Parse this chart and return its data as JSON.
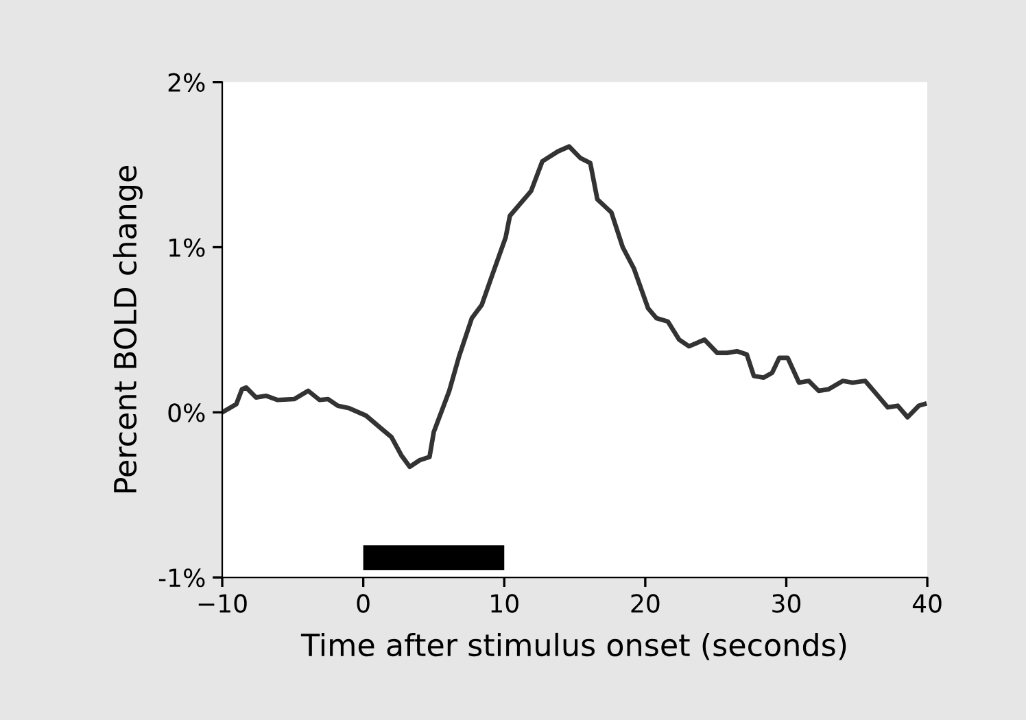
{
  "chart_data": {
    "type": "line",
    "xlabel": "Time after stimulus onset (seconds)",
    "ylabel": "Percent BOLD change",
    "xlim": [
      -10,
      40
    ],
    "ylim": [
      -1,
      2
    ],
    "xticks": [
      {
        "value": -10,
        "label": "−10"
      },
      0,
      10,
      20,
      30,
      40
    ],
    "yticks": [
      {
        "value": -1,
        "label": "-1%"
      },
      {
        "value": 0,
        "label": "0%"
      },
      {
        "value": 1,
        "label": "1%"
      },
      {
        "value": 2,
        "label": "2%"
      }
    ],
    "grid": false,
    "legend": false,
    "marker": "none",
    "line_style": "solid",
    "bands": [
      {
        "axis": "x",
        "from": 0,
        "to": 10,
        "color": "#000000"
      }
    ],
    "series": [
      {
        "color": "#333333",
        "x": [
          -10,
          -9,
          -8.6,
          -8.3,
          -7.6,
          -6.9,
          -6.1,
          -4.9,
          -3.9,
          -3.1,
          -2.5,
          -1.8,
          -1,
          0.2,
          1.3,
          2,
          2.7,
          3.3,
          4,
          4.7,
          5,
          6.1,
          6.8,
          7.7,
          8.4,
          9.1,
          10.1,
          10.4,
          11.9,
          12.7,
          13.8,
          14.6,
          15.4,
          16.1,
          16.6,
          17.6,
          18.4,
          19.2,
          20.2,
          20.8,
          21.6,
          22.4,
          23.1,
          24.2,
          25.1,
          25.8,
          26.5,
          27.2,
          27.7,
          28.4,
          29,
          29.5,
          30.1,
          30.9,
          31.6,
          32.3,
          33,
          34,
          34.7,
          35.6,
          36.3,
          37.2,
          37.9,
          38.6,
          39.4,
          39.8
        ],
        "values": [
          0,
          0.05,
          0.14,
          0.15,
          0.09,
          0.1,
          0.075,
          0.08,
          0.13,
          0.075,
          0.08,
          0.04,
          0.025,
          -0.02,
          -0.1,
          -0.15,
          -0.26,
          -0.33,
          -0.29,
          -0.27,
          -0.12,
          0.13,
          0.34,
          0.57,
          0.65,
          0.82,
          1.06,
          1.19,
          1.34,
          1.52,
          1.58,
          1.61,
          1.54,
          1.51,
          1.29,
          1.21,
          1.0,
          0.87,
          0.63,
          0.57,
          0.55,
          0.44,
          0.4,
          0.44,
          0.36,
          0.36,
          0.37,
          0.35,
          0.22,
          0.21,
          0.24,
          0.33,
          0.33,
          0.18,
          0.19,
          0.13,
          0.14,
          0.19,
          0.18,
          0.19,
          0.12,
          0.03,
          0.04,
          -0.03,
          0.04,
          0.05
        ]
      }
    ]
  }
}
